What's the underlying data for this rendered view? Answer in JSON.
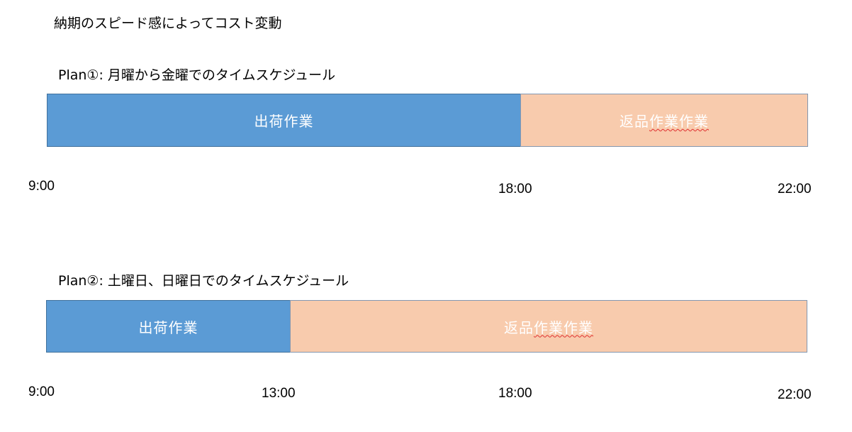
{
  "title": "納期のスピード感によってコスト変動",
  "plans": [
    {
      "title": "Plan①: 月曜から金曜でのタイムスケジュール",
      "bars": [
        {
          "label_main": "出荷作業",
          "label_marked": "",
          "color": "#5b9bd5"
        },
        {
          "label_main": "返品",
          "label_marked": "作業作業",
          "color": "#f8cbad"
        }
      ],
      "times": [
        "9:00",
        "18:00",
        "22:00"
      ]
    },
    {
      "title": "Plan②: 土曜日、日曜日でのタイムスケジュール",
      "bars": [
        {
          "label_main": "出荷作業",
          "label_marked": "",
          "color": "#5b9bd5"
        },
        {
          "label_main": "返品",
          "label_marked": "作業作業",
          "color": "#f8cbad"
        }
      ],
      "times": [
        "9:00",
        "13:00",
        "18:00",
        "22:00"
      ]
    }
  ]
}
